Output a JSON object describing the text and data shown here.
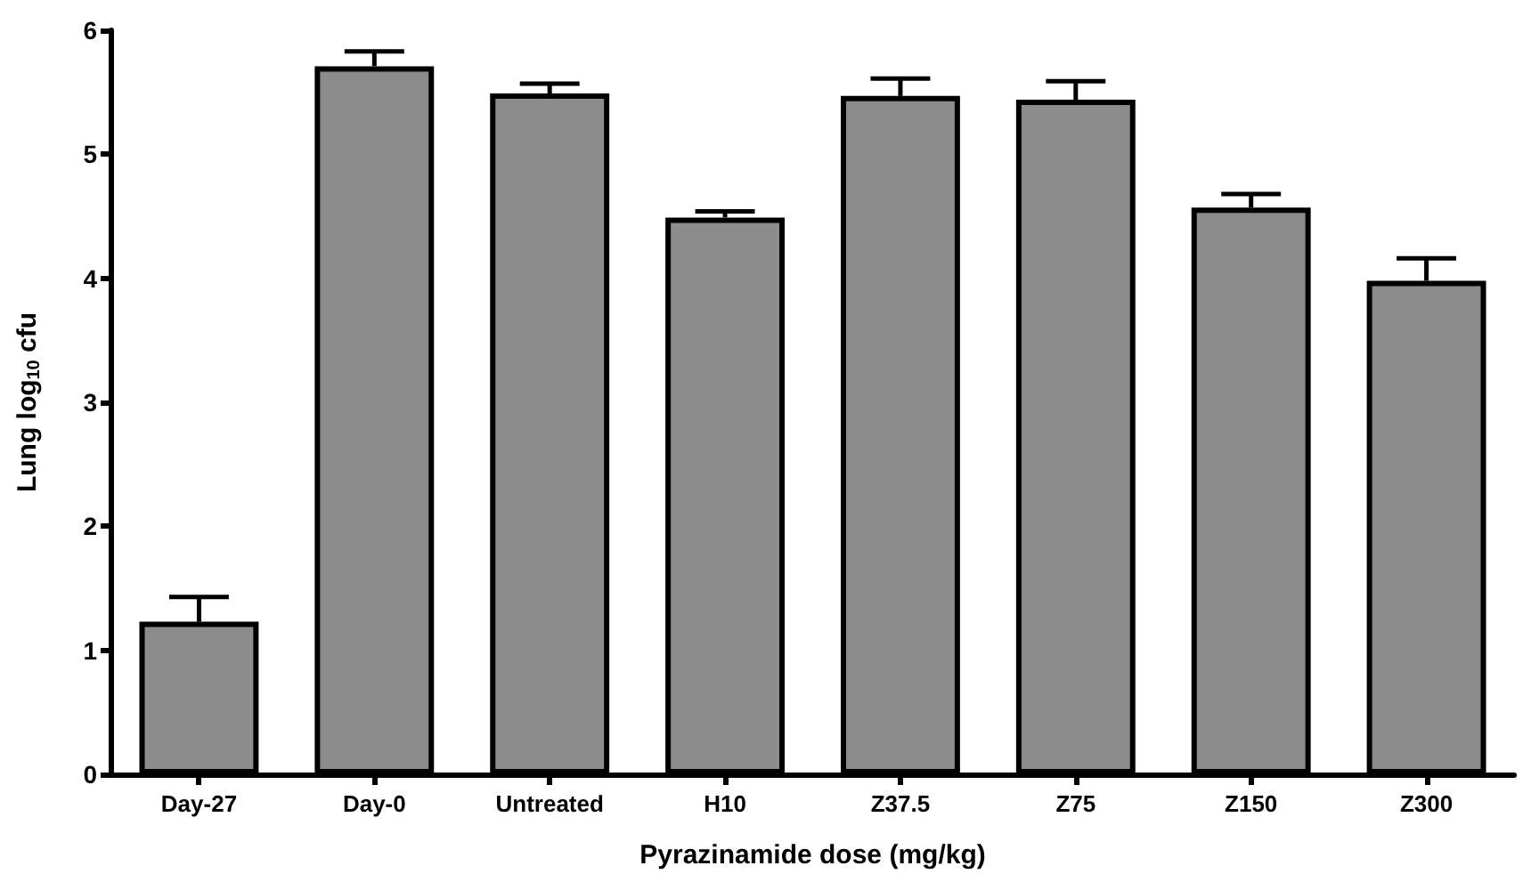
{
  "chart_data": {
    "type": "bar",
    "xlabel": "Pyrazinamide dose (mg/kg)",
    "ylabel": "Lung log$_{10}$ cfu",
    "categories": [
      "Day-27",
      "Day-0",
      "Untreated",
      "H10",
      "Z37.5",
      "Z75",
      "Z150",
      "Z300"
    ],
    "values": [
      1.23,
      5.71,
      5.49,
      4.49,
      5.47,
      5.44,
      4.57,
      3.98
    ],
    "errors": [
      [
        1.23,
        1.43
      ],
      [
        5.71,
        5.83
      ],
      [
        5.49,
        5.57
      ],
      [
        4.49,
        4.54
      ],
      [
        5.47,
        5.61
      ],
      [
        5.44,
        5.59
      ],
      [
        4.57,
        4.68
      ],
      [
        3.98,
        4.16
      ]
    ],
    "color": "#8c8c8c",
    "ylim": [
      0,
      6
    ],
    "yticks": [
      0,
      1,
      2,
      3,
      4,
      5,
      6
    ],
    "grid": false
  }
}
